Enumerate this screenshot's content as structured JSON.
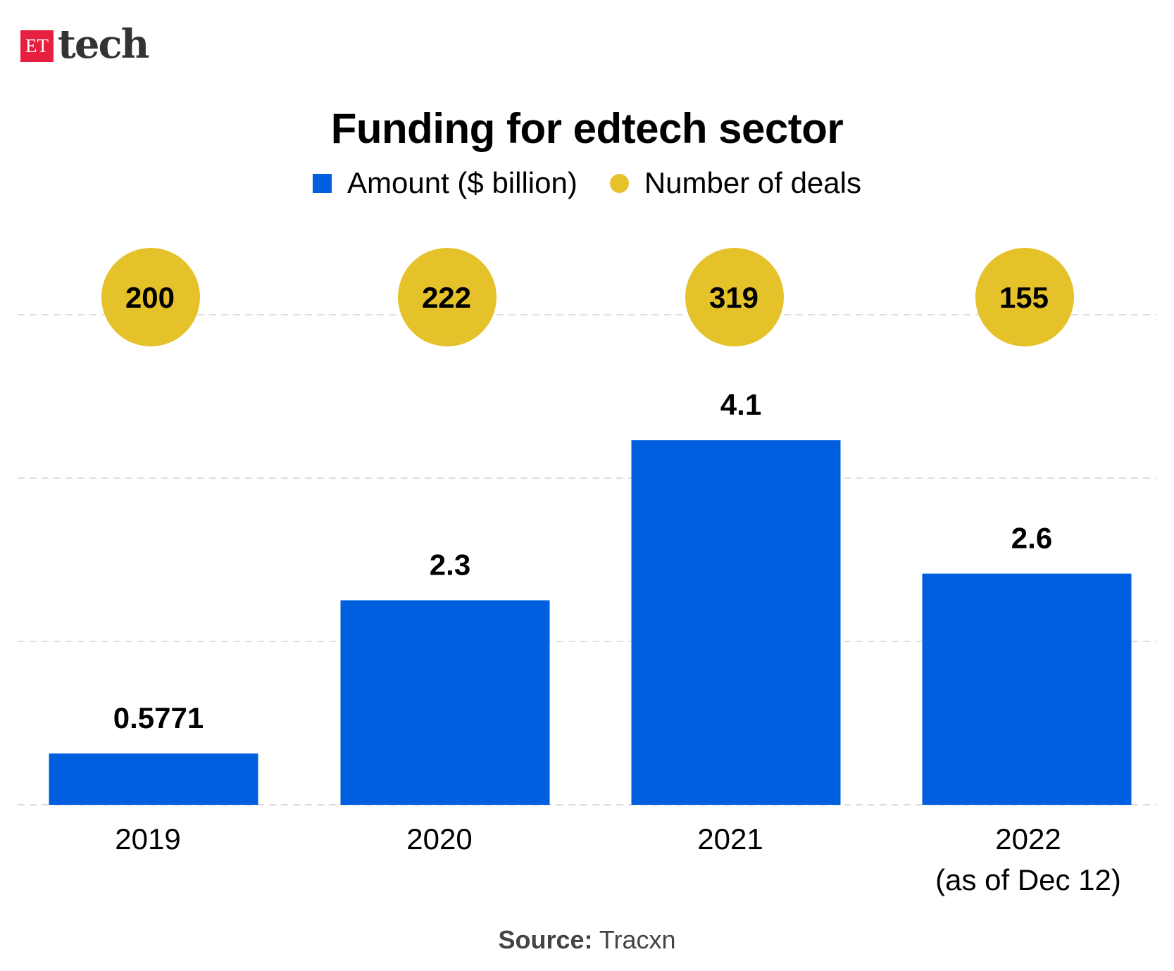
{
  "logo": {
    "et": "ET",
    "tech": "tech"
  },
  "chart_data": {
    "type": "bar",
    "title": "Funding for edtech sector",
    "categories": [
      "2019",
      "2020",
      "2021",
      "2022"
    ],
    "category_sublabels": [
      "",
      "",
      "",
      "(as of Dec 12)"
    ],
    "series": [
      {
        "name": "Amount ($ billion)",
        "values": [
          0.5771,
          2.3,
          4.1,
          2.6
        ],
        "labels": [
          "0.5771",
          "2.3",
          "4.1",
          "2.6"
        ],
        "color": "#005fdf",
        "mark": "bar"
      },
      {
        "name": "Number of deals",
        "values": [
          200,
          222,
          319,
          155
        ],
        "labels": [
          "200",
          "222",
          "319",
          "155"
        ],
        "color": "#e5c12a",
        "mark": "circle"
      }
    ],
    "grid": true,
    "legend": "top-center"
  },
  "source": {
    "label": "Source:",
    "value": "Tracxn"
  }
}
